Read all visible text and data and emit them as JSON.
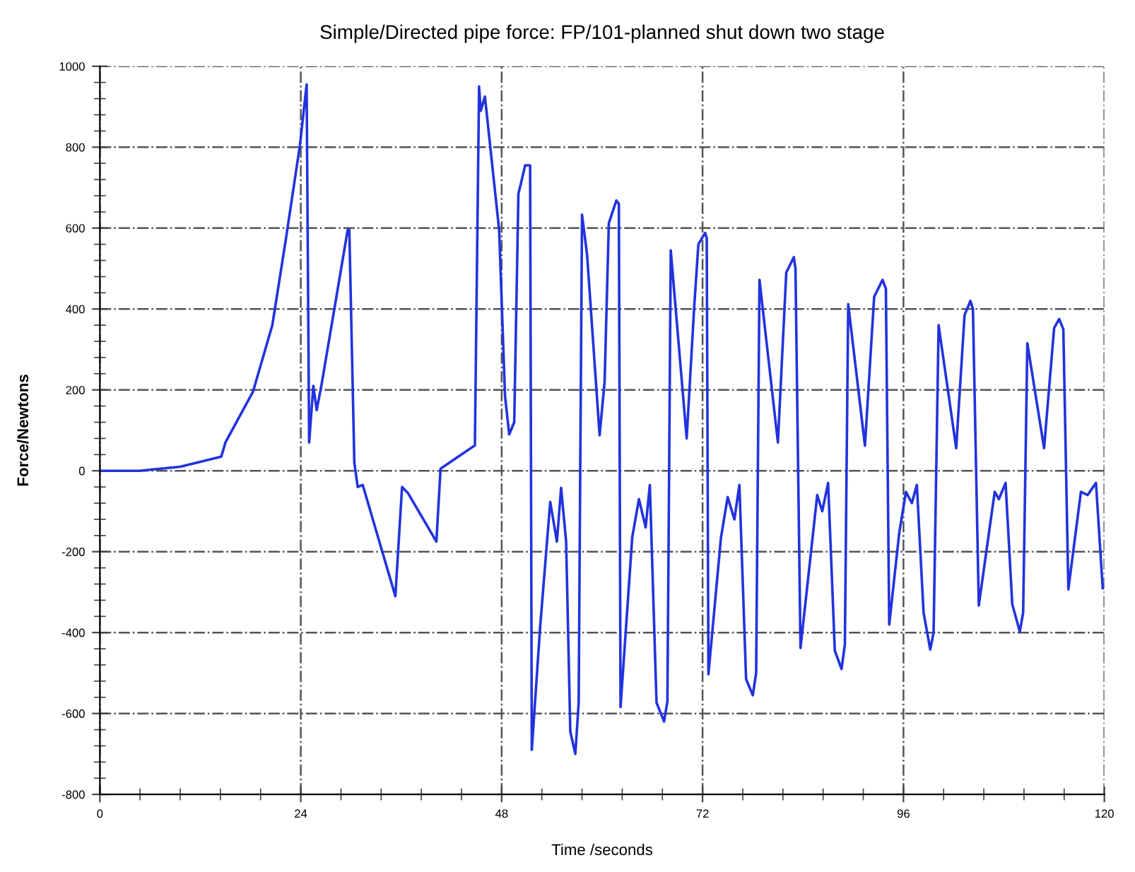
{
  "chart_data": {
    "type": "line",
    "title": "Simple/Directed pipe force: FP/101-planned shut down two stage",
    "xlabel": "Time /seconds",
    "ylabel": "Force/Newtons",
    "xlim": [
      0,
      120
    ],
    "xticks": [
      0,
      24,
      48,
      72,
      96,
      120
    ],
    "ylim": [
      -800,
      1000
    ],
    "yticks": [
      -800,
      -600,
      -400,
      -200,
      0,
      200,
      400,
      600,
      800,
      1000
    ],
    "grid": true,
    "marker": "none",
    "line_style": "solid",
    "series": [
      {
        "color": "#2233dd",
        "x": [
          0,
          4.7,
          9.6,
          14.5,
          15,
          18.3,
          20.6,
          22.2,
          23.9,
          24.7,
          25.0,
          25.5,
          25.9,
          26.5,
          29.6,
          29.8,
          30.4,
          30.8,
          31.4,
          35.3,
          36.1,
          36.8,
          40.2,
          40.7,
          44.8,
          45.3,
          45.5,
          46,
          47.7,
          48.4,
          48.9,
          49.5,
          50,
          50.3,
          50.8,
          51.4,
          51.6,
          52.6,
          53.8,
          54.6,
          55.1,
          55.7,
          56.2,
          56.8,
          57.2,
          57.4,
          57.6,
          58.2,
          59.7,
          60.3,
          60.8,
          61.7,
          62,
          62.2,
          63.6,
          64.4,
          65.2,
          65.7,
          66.5,
          67.4,
          67.8,
          68.2,
          70.1,
          71,
          71.5,
          72.3,
          72.5,
          72.7,
          74.2,
          75,
          75.8,
          76.4,
          77.2,
          78,
          78.4,
          78.8,
          81,
          82,
          82.9,
          83.1,
          83.7,
          85.7,
          86.3,
          87,
          87.8,
          88.6,
          89,
          89.4,
          91.4,
          92.5,
          93.5,
          93.9,
          94.3,
          95.5,
          96.3,
          97,
          97.6,
          98.4,
          99.2,
          99.6,
          100.2,
          102.3,
          103.3,
          104,
          104.3,
          105,
          106.9,
          107.4,
          108.2,
          109,
          109.9,
          110.3,
          110.8,
          112.8,
          114,
          114.6,
          115.1,
          115.7,
          117.2,
          118,
          119,
          119.8
        ],
        "values": [
          0,
          0,
          10,
          35,
          70,
          196,
          360,
          570,
          805,
          955,
          70,
          210,
          150,
          215,
          595,
          595,
          20,
          -40,
          -35,
          -310,
          -40,
          -55,
          -175,
          5,
          63,
          950,
          890,
          925,
          595,
          185,
          90,
          120,
          685,
          710,
          755,
          755,
          -690,
          -385,
          -77,
          -175,
          -42,
          -175,
          -645,
          -700,
          -573,
          45,
          633,
          535,
          88,
          220,
          612,
          668,
          660,
          -584,
          -164,
          -70,
          -140,
          -35,
          -573,
          -620,
          -570,
          545,
          80,
          405,
          560,
          588,
          575,
          -503,
          -165,
          -65,
          -120,
          -35,
          -515,
          -555,
          -500,
          472,
          70,
          490,
          528,
          500,
          -438,
          -60,
          -100,
          -30,
          -445,
          -490,
          -430,
          412,
          62,
          430,
          472,
          450,
          -380,
          -153,
          -52,
          -80,
          -35,
          -350,
          -442,
          -400,
          360,
          56,
          385,
          420,
          400,
          -333,
          -52,
          -70,
          -30,
          -330,
          -398,
          -350,
          315,
          56,
          353,
          375,
          350,
          -293,
          -52,
          -60,
          -30,
          -290
        ]
      }
    ]
  }
}
